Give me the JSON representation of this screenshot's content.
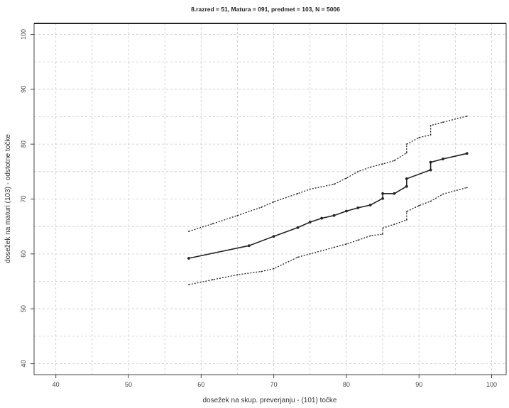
{
  "chart_data": {
    "type": "line",
    "title": "8.razred = 51, Matura = 091, predmet = 103, N = 5006",
    "xlabel": "dosežek na skup. preverjanju - (101) točke",
    "ylabel": "dosežek na maturi (103) - odstotne točke",
    "xlim": [
      37,
      102
    ],
    "ylim": [
      38,
      102
    ],
    "xticks": [
      40,
      50,
      60,
      70,
      80,
      90,
      100
    ],
    "yticks": [
      40,
      50,
      60,
      70,
      80,
      90,
      100
    ],
    "grid": true,
    "series": [
      {
        "role": "mean",
        "style": "solid",
        "x": [
          58.3,
          66.6,
          70.0,
          73.3,
          75.0,
          76.6,
          78.3,
          80.0,
          81.6,
          83.3,
          85.0,
          85.0,
          86.6,
          88.3,
          88.3,
          91.6,
          91.6,
          93.3,
          96.6
        ],
        "y": [
          59.2,
          61.5,
          63.2,
          64.8,
          65.8,
          66.5,
          67.0,
          67.8,
          68.4,
          68.9,
          70.1,
          71.0,
          71.0,
          72.3,
          73.7,
          75.3,
          76.7,
          77.3,
          78.3
        ]
      },
      {
        "role": "upper",
        "style": "dotted",
        "x": [
          58.3,
          61.6,
          65.0,
          68.3,
          70.0,
          73.3,
          75.0,
          78.3,
          80.0,
          81.6,
          83.3,
          85.0,
          86.6,
          88.3,
          88.3,
          90.0,
          91.6,
          91.6,
          93.3,
          96.6
        ],
        "y": [
          64.1,
          65.5,
          67.0,
          68.5,
          69.5,
          71.0,
          71.8,
          72.7,
          73.8,
          75.0,
          75.8,
          76.4,
          77.0,
          78.4,
          80.0,
          81.2,
          81.7,
          83.4,
          84.0,
          85.1
        ]
      },
      {
        "role": "lower",
        "style": "dotted",
        "x": [
          58.3,
          61.6,
          65.0,
          68.3,
          70.0,
          73.3,
          75.0,
          78.3,
          80.0,
          81.6,
          83.3,
          85.0,
          85.0,
          86.6,
          88.3,
          88.3,
          90.0,
          91.6,
          93.3,
          96.6
        ],
        "y": [
          54.4,
          55.3,
          56.2,
          56.8,
          57.3,
          59.4,
          60.0,
          61.2,
          61.8,
          62.5,
          63.3,
          63.6,
          64.7,
          65.4,
          66.2,
          67.7,
          68.8,
          69.6,
          70.9,
          72.1
        ]
      }
    ],
    "colors": {
      "line": "#222222",
      "grid": "#c8c8c8",
      "frame": "#444444"
    }
  }
}
